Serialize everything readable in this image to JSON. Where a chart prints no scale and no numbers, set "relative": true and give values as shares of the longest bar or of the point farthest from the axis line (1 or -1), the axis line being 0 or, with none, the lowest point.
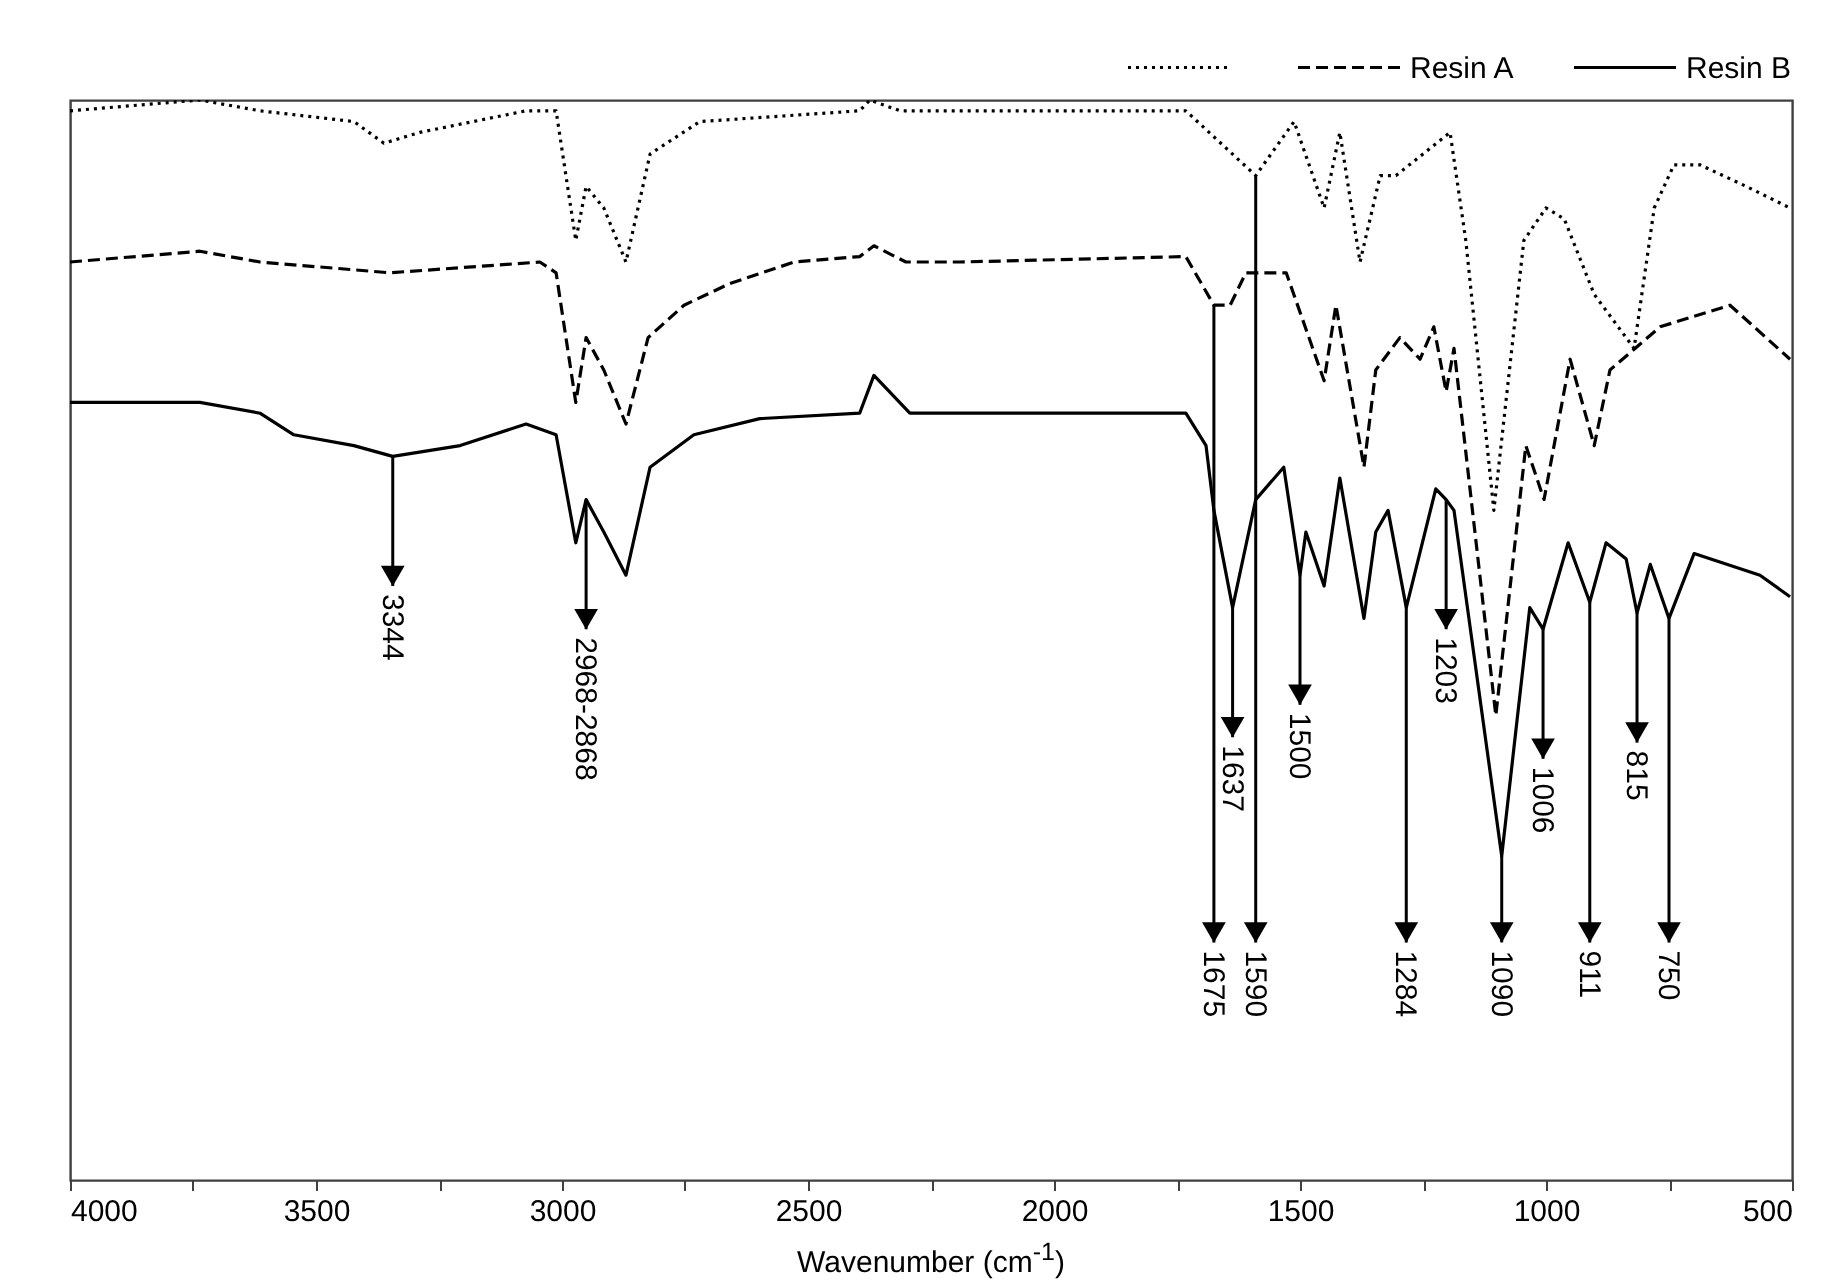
{
  "chart_data": {
    "type": "line",
    "relative": true,
    "xlabel": "Wavenumber (cm$^{-1}$)",
    "xlim": [
      4000,
      500
    ],
    "xticks": [
      4000,
      {
        "value": 3750,
        "label": null
      },
      3500,
      {
        "value": 3250,
        "label": null
      },
      3000,
      {
        "value": 2750,
        "label": null
      },
      2500,
      {
        "value": 2250,
        "label": null
      },
      2000,
      {
        "value": 1750,
        "label": null
      },
      1500,
      {
        "value": 1250,
        "label": null
      },
      1000,
      {
        "value": 750,
        "label": null
      },
      500
    ],
    "tick_labels": "x",
    "grid": false,
    "legend": "top right",
    "marker": "none",
    "series": [
      {
        "color": "#000000",
        "line_style": "dotted",
        "x": [
          4000,
          3736,
          3614,
          3423,
          3362,
          3289,
          3073,
          3012,
          2972,
          2951,
          2915,
          2870,
          2821,
          2720,
          2395,
          2374,
          2313,
          2191,
          1732,
          1590,
          1512,
          1451,
          1419,
          1378,
          1337,
          1305,
          1195,
          1163,
          1106,
          1045,
          1000,
          963,
          902,
          821,
          780,
          740,
          687,
          593,
          504
        ],
        "values": [
          0.99,
          1.0,
          0.99,
          0.98,
          0.96,
          0.97,
          0.99,
          0.99,
          0.87,
          0.92,
          0.9,
          0.85,
          0.95,
          0.98,
          0.99,
          1.0,
          0.99,
          0.99,
          0.99,
          0.93,
          0.98,
          0.9,
          0.97,
          0.85,
          0.93,
          0.93,
          0.97,
          0.87,
          0.62,
          0.87,
          0.9,
          0.89,
          0.82,
          0.77,
          0.9,
          0.94,
          0.94,
          0.92,
          0.9
        ]
      },
      {
        "name": "Resin A",
        "color": "#000000",
        "line_style": "dashed",
        "x": [
          4000,
          3736,
          3614,
          3350,
          3045,
          3012,
          2972,
          2951,
          2915,
          2870,
          2825,
          2752,
          2659,
          2528,
          2395,
          2366,
          2301,
          2191,
          1732,
          1675,
          1642,
          1610,
          1528,
          1451,
          1427,
          1370,
          1346,
          1297,
          1256,
          1228,
          1203,
          1187,
          1102,
          1041,
          1004,
          951,
          902,
          870,
          768,
          626,
          504
        ],
        "values": [
          0.85,
          0.86,
          0.85,
          0.84,
          0.85,
          0.84,
          0.72,
          0.78,
          0.75,
          0.7,
          0.78,
          0.81,
          0.83,
          0.85,
          0.855,
          0.865,
          0.85,
          0.85,
          0.855,
          0.81,
          0.81,
          0.84,
          0.84,
          0.74,
          0.81,
          0.66,
          0.75,
          0.78,
          0.76,
          0.79,
          0.73,
          0.77,
          0.43,
          0.68,
          0.63,
          0.76,
          0.68,
          0.75,
          0.79,
          0.81,
          0.76
        ]
      },
      {
        "name": "Resin B",
        "color": "#000000",
        "line_style": "solid",
        "x": [
          4000,
          3736,
          3614,
          3545,
          3423,
          3344,
          3207,
          3073,
          3012,
          2972,
          2951,
          2915,
          2870,
          2821,
          2732,
          2598,
          2395,
          2366,
          2293,
          2191,
          1732,
          1691,
          1675,
          1637,
          1590,
          1533,
          1500,
          1488,
          1451,
          1419,
          1370,
          1346,
          1321,
          1284,
          1224,
          1203,
          1187,
          1090,
          1033,
          1006,
          955,
          911,
          878,
          837,
          815,
          788,
          750,
          699,
          565,
          504
        ],
        "values": [
          0.72,
          0.72,
          0.71,
          0.69,
          0.68,
          0.67,
          0.68,
          0.7,
          0.69,
          0.59,
          0.63,
          0.6,
          0.56,
          0.66,
          0.69,
          0.705,
          0.71,
          0.745,
          0.71,
          0.71,
          0.71,
          0.68,
          0.62,
          0.53,
          0.63,
          0.66,
          0.56,
          0.6,
          0.55,
          0.65,
          0.52,
          0.6,
          0.62,
          0.53,
          0.64,
          0.63,
          0.62,
          0.3,
          0.53,
          0.51,
          0.59,
          0.535,
          0.59,
          0.575,
          0.525,
          0.57,
          0.52,
          0.58,
          0.56,
          0.54
        ]
      }
    ],
    "annotations": [
      {
        "text": "3344",
        "x": 3344,
        "y": 0.67
      },
      {
        "text": "2968-2868",
        "x": 2951,
        "y": 0.63
      },
      {
        "text": "1675",
        "x": 1675,
        "y": 0.81
      },
      {
        "text": "1637",
        "x": 1637,
        "y": 0.53
      },
      {
        "text": "1590",
        "x": 1590,
        "y": 0.93
      },
      {
        "text": "1500",
        "x": 1500,
        "y": 0.56
      },
      {
        "text": "1284",
        "x": 1284,
        "y": 0.53
      },
      {
        "text": "1203",
        "x": 1203,
        "y": 0.63
      },
      {
        "text": "1090",
        "x": 1090,
        "y": 0.3
      },
      {
        "text": "1006",
        "x": 1006,
        "y": 0.51
      },
      {
        "text": "911",
        "x": 911,
        "y": 0.535
      },
      {
        "text": "815",
        "x": 815,
        "y": 0.525
      },
      {
        "text": "750",
        "x": 750,
        "y": 0.52
      }
    ]
  }
}
